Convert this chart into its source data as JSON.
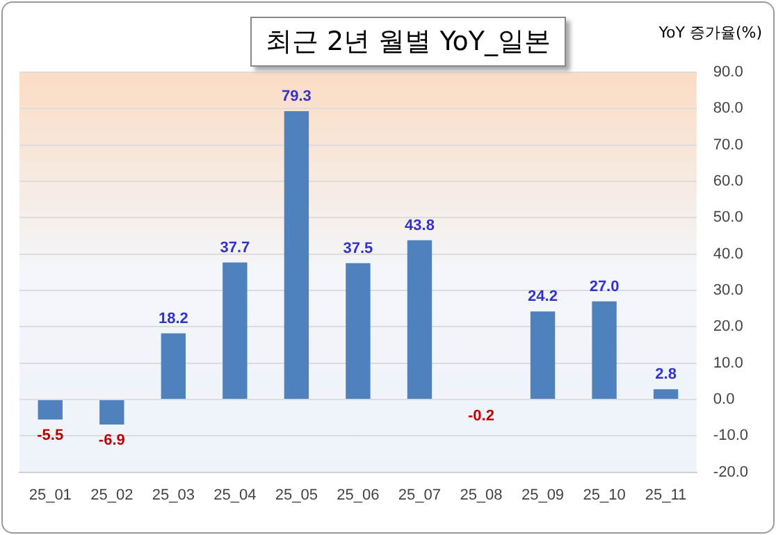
{
  "chart_data": {
    "type": "bar",
    "title": "최근 2년 월별 YoY_일본",
    "ylabel": "YoY 증가율(%)",
    "categories": [
      "25_01",
      "25_02",
      "25_03",
      "25_04",
      "25_05",
      "25_06",
      "25_07",
      "25_08",
      "25_09",
      "25_10",
      "25_11"
    ],
    "values": [
      -5.5,
      -6.9,
      18.2,
      37.7,
      79.3,
      37.5,
      43.8,
      -0.2,
      24.2,
      27.0,
      2.8
    ],
    "value_labels": [
      "-5.5",
      "-6.9",
      "18.2",
      "37.7",
      "79.3",
      "37.5",
      "43.8",
      "-0.2",
      "24.2",
      "27.0",
      "2.8"
    ],
    "color": "#4f81bd",
    "ylim": [
      -20,
      90
    ],
    "yticks": [
      {
        "value": -20,
        "label": "-20.0"
      },
      {
        "value": -10,
        "label": "-10.0"
      },
      {
        "value": 0,
        "label": "0.0"
      },
      {
        "value": 10,
        "label": "10.0"
      },
      {
        "value": 20,
        "label": "20.0"
      },
      {
        "value": 30,
        "label": "30.0"
      },
      {
        "value": 40,
        "label": "40.0"
      },
      {
        "value": 50,
        "label": "50.0"
      },
      {
        "value": 60,
        "label": "60.0"
      },
      {
        "value": 70,
        "label": "70.0"
      },
      {
        "value": 80,
        "label": "80.0"
      },
      {
        "value": 90,
        "label": "90.0"
      }
    ],
    "grid": "y",
    "legend": false
  }
}
